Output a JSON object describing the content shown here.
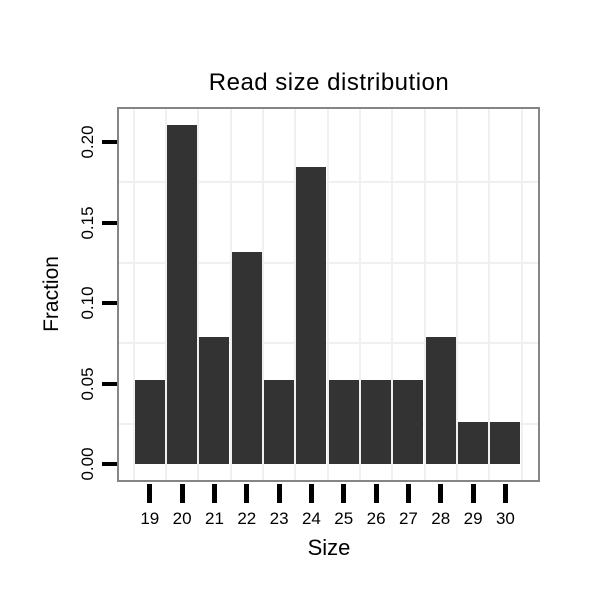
{
  "chart_data": {
    "type": "bar",
    "title": "Read size distribution",
    "xlabel": "Size",
    "ylabel": "Fraction",
    "categories": [
      "19",
      "20",
      "21",
      "22",
      "23",
      "24",
      "25",
      "26",
      "27",
      "28",
      "29",
      "30"
    ],
    "values": [
      0.0526,
      0.2105,
      0.0789,
      0.1316,
      0.0526,
      0.1842,
      0.0526,
      0.0526,
      0.0526,
      0.0789,
      0.0263,
      0.0263
    ],
    "y_tick_labels": [
      "0.00",
      "0.05",
      "0.10",
      "0.15",
      "0.20"
    ],
    "y_tick_values": [
      0.0,
      0.05,
      0.1,
      0.15,
      0.2
    ],
    "y_minor_grid_values": [
      0.025,
      0.075,
      0.125,
      0.175
    ],
    "ylim": [
      -0.0103,
      0.2212
    ],
    "grid": "minor-only",
    "legend": "none",
    "bar_color": "#333333",
    "panel_border_color": "#858585",
    "gridline_color": "#f0f0f0",
    "tick_color": "#000000",
    "text_color": "#000000",
    "background_color": "#ffffff"
  }
}
